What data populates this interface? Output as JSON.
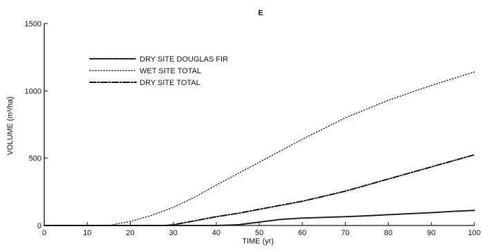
{
  "chart_data": {
    "type": "line",
    "panel_label": "E",
    "xlabel": "TIME (yr)",
    "ylabel": "VOLUME (m³/ha)",
    "xlim": [
      0,
      100
    ],
    "ylim": [
      0,
      1500
    ],
    "xticks": [
      0,
      10,
      20,
      30,
      40,
      50,
      60,
      70,
      80,
      90,
      100
    ],
    "yticks": [
      0,
      500,
      1000,
      1500
    ],
    "grid": false,
    "legend_position": "top-left",
    "series": [
      {
        "name": "DRY SITE DOUGLAS FIR",
        "style": "dense-dotted",
        "x": [
          0,
          40,
          45,
          50,
          55,
          60,
          65,
          70,
          75,
          80,
          85,
          90,
          95,
          100
        ],
        "y": [
          0,
          0,
          5,
          25,
          45,
          55,
          60,
          65,
          72,
          80,
          88,
          95,
          105,
          112
        ]
      },
      {
        "name": "WET SITE TOTAL",
        "style": "sparse-dotted",
        "x": [
          0,
          15,
          20,
          25,
          30,
          35,
          40,
          50,
          60,
          70,
          80,
          90,
          100
        ],
        "y": [
          0,
          0,
          30,
          75,
          135,
          210,
          300,
          470,
          640,
          800,
          930,
          1040,
          1140
        ]
      },
      {
        "name": "DRY SITE TOTAL",
        "style": "dash-dot",
        "x": [
          0,
          28,
          30,
          35,
          40,
          45,
          50,
          55,
          60,
          70,
          80,
          90,
          95,
          100
        ],
        "y": [
          0,
          0,
          5,
          35,
          65,
          90,
          120,
          150,
          180,
          255,
          345,
          435,
          480,
          525
        ]
      }
    ]
  }
}
